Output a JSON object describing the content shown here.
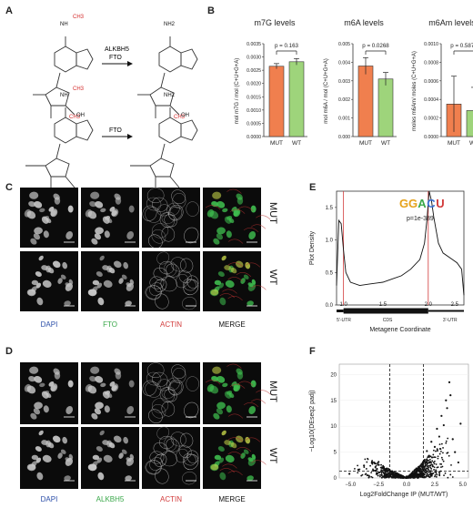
{
  "panels": {
    "A": "A",
    "B": "B",
    "C": "C",
    "D": "D",
    "E": "E",
    "F": "F"
  },
  "panelA": {
    "enzymes_top": [
      "ALKBH5",
      "FTO"
    ],
    "enzyme_bottom": "FTO",
    "groups": {
      "ch3": "CH3",
      "nh2": "NH2",
      "nh": "NH",
      "n": "N",
      "oh": "OH",
      "o": "O"
    }
  },
  "panelB": {
    "colors": {
      "mut": "#f07f4e",
      "wt": "#9ed47b"
    },
    "charts": [
      {
        "title": "m7G levels",
        "ylabel": "mol m7G / mol (C+U+G+A)",
        "yticks": [
          "0.0000",
          "0.0005",
          "0.0010",
          "0.0015",
          "0.0020",
          "0.0025",
          "0.0030",
          "0.0035"
        ],
        "categories": [
          "MUT",
          "WT"
        ],
        "pvalue": "p = 0.163"
      },
      {
        "title": "m6A levels",
        "ylabel": "mol m6A / mol (C+U+G+A)",
        "yticks": [
          "0.000",
          "0.001",
          "0.002",
          "0.003",
          "0.004",
          "0.005"
        ],
        "categories": [
          "MUT",
          "WT"
        ],
        "pvalue": "p = 0.0268"
      },
      {
        "title": "m6Am levels",
        "ylabel": "moles m6Am/ moles (C+U+G+A)",
        "yticks": [
          "0.0000",
          "0.0002",
          "0.0004",
          "0.0006",
          "0.0008",
          "0.0010"
        ],
        "categories": [
          "MUT",
          "WT"
        ],
        "pvalue": "p = 0.5871"
      }
    ]
  },
  "panelC": {
    "channels": [
      "DAPI",
      "FTO",
      "ACTIN",
      "MERGE"
    ],
    "rows": [
      "MUT",
      "WT"
    ],
    "channel_colors": [
      "#2b4ea8",
      "#3aa84a",
      "#d23a3a",
      "#111111"
    ]
  },
  "panelD": {
    "channels": [
      "DAPI",
      "ALKBH5",
      "ACTIN",
      "MERGE"
    ],
    "rows": [
      "MUT",
      "WT"
    ],
    "channel_colors": [
      "#2b4ea8",
      "#3aa84a",
      "#d23a3a",
      "#111111"
    ]
  },
  "panelE": {
    "ylabel": "Plot Density",
    "xlabel": "Metagene Coordinate",
    "yticks": [
      "0.0",
      "0.5",
      "1.0",
      "1.5"
    ],
    "xticks": [
      "1.0",
      "1.5",
      "2.0",
      "2.5"
    ],
    "regions": [
      "5'-UTR",
      "CDS",
      "3'-UTR"
    ],
    "motif": [
      "G",
      "G",
      "A",
      "C",
      "U"
    ],
    "pvalue": "p=1e-389"
  },
  "panelF": {
    "ylabel": "−Log10(DEseq2 padj)",
    "xlabel": "Log2FoldChange IP (MUT/WT)",
    "yticks": [
      "0",
      "5",
      "10",
      "15",
      "20"
    ],
    "xticks": [
      "−5.0",
      "−2.5",
      "0.0",
      "2.5",
      "5.0"
    ]
  },
  "chart_data": [
    {
      "type": "bar",
      "title": "m7G levels",
      "ylabel": "mol m7G / mol (C+U+G+A)",
      "categories": [
        "MUT",
        "WT"
      ],
      "values": [
        0.00265,
        0.00282
      ],
      "errors": [
        0.0001,
        0.00012
      ],
      "ylim": [
        0,
        0.0035
      ],
      "annotation": "p = 0.163"
    },
    {
      "type": "bar",
      "title": "m6A levels",
      "ylabel": "mol m6A / mol (C+U+G+A)",
      "categories": [
        "MUT",
        "WT"
      ],
      "values": [
        0.0038,
        0.0031
      ],
      "errors": [
        0.00045,
        0.00035
      ],
      "ylim": [
        0,
        0.005
      ],
      "annotation": "p = 0.0268"
    },
    {
      "type": "bar",
      "title": "m6Am levels",
      "ylabel": "moles m6Am/ moles (C+U+G+A)",
      "categories": [
        "MUT",
        "WT"
      ],
      "values": [
        0.00035,
        0.00028
      ],
      "errors": [
        0.0003,
        0.00025
      ],
      "ylim": [
        0,
        0.001
      ],
      "annotation": "p = 0.5871"
    },
    {
      "type": "line",
      "xlabel": "Metagene Coordinate",
      "ylabel": "Plot Density",
      "x": [
        0.0,
        0.05,
        0.1,
        0.15,
        0.2,
        0.3,
        0.5,
        0.7,
        0.9,
        1.0,
        1.2,
        1.4,
        1.6,
        1.8,
        1.9,
        1.95,
        2.0,
        2.05,
        2.1,
        2.2,
        2.3,
        2.5,
        2.6,
        2.7,
        2.75
      ],
      "y": [
        0.3,
        1.3,
        1.25,
        0.85,
        0.5,
        0.35,
        0.3,
        0.32,
        0.34,
        0.35,
        0.4,
        0.45,
        0.55,
        0.7,
        0.95,
        1.3,
        1.75,
        1.6,
        1.35,
        0.95,
        0.8,
        0.7,
        0.65,
        0.55,
        0.15
      ],
      "ylim": [
        0,
        1.75
      ],
      "xlim": [
        0,
        2.75
      ],
      "annotation": "p=1e-389"
    },
    {
      "type": "scatter",
      "xlabel": "Log2FoldChange IP (MUT/WT)",
      "ylabel": "−Log10(DEseq2 padj)",
      "xlim": [
        -6,
        5.5
      ],
      "ylim": [
        0,
        22
      ],
      "thresholds": {
        "x": [
          -1.5,
          1.5
        ],
        "y": 1.3
      },
      "points": [
        [
          -5.1,
          0.8
        ],
        [
          -4.3,
          1.6
        ],
        [
          -3.8,
          2.4
        ],
        [
          -3.5,
          0.5
        ],
        [
          -3.1,
          2.9
        ],
        [
          -2.8,
          1.4
        ],
        [
          -2.5,
          3.1
        ],
        [
          -2.2,
          2.0
        ],
        [
          -1.8,
          1.8
        ],
        [
          -1.6,
          1.5
        ],
        [
          -1.2,
          1.0
        ],
        [
          -0.9,
          0.6
        ],
        [
          -0.5,
          0.4
        ],
        [
          0.0,
          0.3
        ],
        [
          0.5,
          0.6
        ],
        [
          0.9,
          1.2
        ],
        [
          1.3,
          2.2
        ],
        [
          1.6,
          3.5
        ],
        [
          1.8,
          5.2
        ],
        [
          2.0,
          4.3
        ],
        [
          2.2,
          7.0
        ],
        [
          2.5,
          6.0
        ],
        [
          2.7,
          9.5
        ],
        [
          2.9,
          8.0
        ],
        [
          3.1,
          12.0
        ],
        [
          3.3,
          10.2
        ],
        [
          3.5,
          15.0
        ],
        [
          3.6,
          13.5
        ],
        [
          3.8,
          18.5
        ],
        [
          3.9,
          16.0
        ],
        [
          4.1,
          7.5
        ],
        [
          4.3,
          5.0
        ],
        [
          4.6,
          3.0
        ],
        [
          4.8,
          10.5
        ]
      ]
    }
  ]
}
